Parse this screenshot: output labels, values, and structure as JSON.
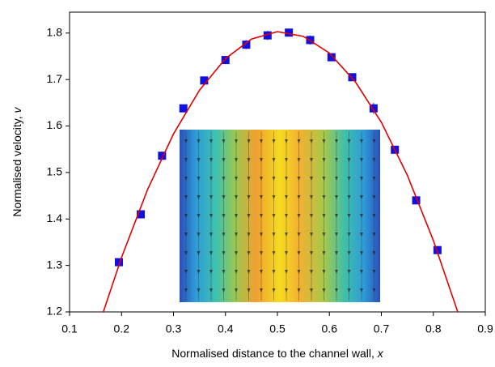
{
  "chart_data": {
    "type": "scatter",
    "xlabel": {
      "text": "Normalised distance to the channel wall,",
      "variable": "x"
    },
    "ylabel": {
      "text": "Normalised velocity,",
      "variable": "v"
    },
    "xlim": [
      0.1,
      0.9
    ],
    "xticks": [
      0.1,
      0.2,
      0.3,
      0.4,
      0.5,
      0.6,
      0.7,
      0.8,
      0.9
    ],
    "ylim": [
      1.2,
      1.845
    ],
    "yticks": [
      1.2,
      1.3,
      1.4,
      1.5,
      1.6,
      1.7,
      1.8
    ],
    "series": [
      {
        "kind": "points",
        "color": "#1010e0",
        "x": [
          0.195,
          0.237,
          0.278,
          0.319,
          0.359,
          0.4,
          0.44,
          0.481,
          0.522,
          0.563,
          0.604,
          0.644,
          0.685,
          0.726,
          0.767,
          0.808
        ],
        "values": [
          1.307,
          1.41,
          1.536,
          1.638,
          1.698,
          1.742,
          1.775,
          1.795,
          1.801,
          1.785,
          1.748,
          1.705,
          1.638,
          1.549,
          1.44,
          1.333
        ],
        "errors": [
          0.006,
          0.006,
          0.006,
          0.006,
          0.006,
          0.006,
          0.01,
          0.01,
          0.008,
          0.01,
          0.008,
          0.006,
          0.012,
          0.006,
          0.006,
          0.006
        ]
      },
      {
        "kind": "curve",
        "color": "#e00000",
        "x": [
          0.165,
          0.2,
          0.25,
          0.3,
          0.35,
          0.4,
          0.45,
          0.5,
          0.55,
          0.6,
          0.65,
          0.7,
          0.75,
          0.8,
          0.847
        ],
        "values": [
          1.2,
          1.317,
          1.463,
          1.583,
          1.677,
          1.745,
          1.787,
          1.803,
          1.793,
          1.757,
          1.695,
          1.608,
          1.494,
          1.354,
          1.2
        ]
      }
    ]
  }
}
